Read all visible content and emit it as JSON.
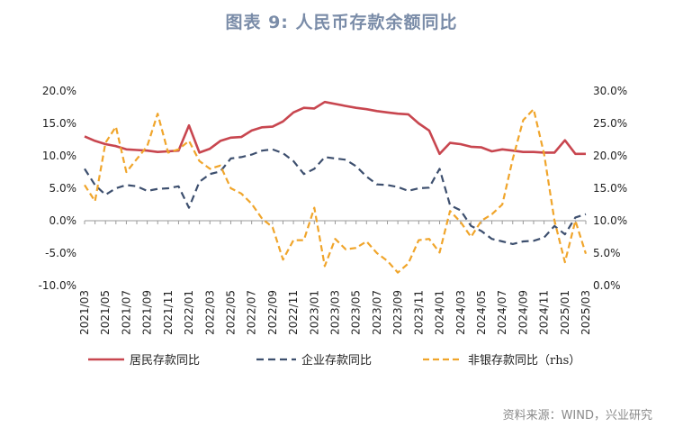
{
  "title": "图表 9: 人民币存款余额同比",
  "source": "资料来源：WIND，兴业研究",
  "chart_data": {
    "type": "line",
    "x_tick_labels": [
      "2021/03",
      "2021/05",
      "2021/07",
      "2021/09",
      "2021/11",
      "2022/01",
      "2022/03",
      "2022/05",
      "2022/07",
      "2022/09",
      "2022/11",
      "2023/01",
      "2023/03",
      "2023/05",
      "2023/07",
      "2023/09",
      "2023/11",
      "2024/01",
      "2024/03",
      "2024/05",
      "2024/07",
      "2024/09",
      "2024/11",
      "2025/01",
      "2025/03"
    ],
    "x": [
      "2021/03",
      "2021/04",
      "2021/05",
      "2021/06",
      "2021/07",
      "2021/08",
      "2021/09",
      "2021/10",
      "2021/11",
      "2021/12",
      "2022/01",
      "2022/02",
      "2022/03",
      "2022/04",
      "2022/05",
      "2022/06",
      "2022/07",
      "2022/08",
      "2022/09",
      "2022/10",
      "2022/11",
      "2022/12",
      "2023/01",
      "2023/02",
      "2023/03",
      "2023/04",
      "2023/05",
      "2023/06",
      "2023/07",
      "2023/08",
      "2023/09",
      "2023/10",
      "2023/11",
      "2023/12",
      "2024/01",
      "2024/02",
      "2024/03",
      "2024/04",
      "2024/05",
      "2024/06",
      "2024/07",
      "2024/08",
      "2024/09",
      "2024/10",
      "2024/11",
      "2024/12",
      "2025/01",
      "2025/02",
      "2025/03"
    ],
    "y_left": {
      "ticks": [
        "20.0%",
        "15.0%",
        "10.0%",
        "5.0%",
        "0.0%",
        "-5.0%",
        "-10.0%"
      ],
      "range": [
        -10,
        20
      ]
    },
    "y_right": {
      "ticks": [
        "30.0%",
        "25.0%",
        "20.0%",
        "15.0%",
        "10.0%",
        "5.0%",
        "0.0%"
      ],
      "range": [
        0,
        30
      ]
    },
    "series": [
      {
        "name": "居民存款同比",
        "axis": "left",
        "color": "#c8464f",
        "style": "solid",
        "values": [
          13.0,
          12.3,
          11.8,
          11.5,
          11.0,
          10.9,
          10.8,
          10.6,
          10.7,
          10.8,
          14.7,
          10.5,
          11.1,
          12.3,
          12.8,
          12.9,
          13.9,
          14.4,
          14.5,
          15.3,
          16.7,
          17.4,
          17.3,
          18.3,
          18.0,
          17.7,
          17.4,
          17.2,
          16.9,
          16.7,
          16.5,
          16.4,
          15.0,
          13.9,
          10.3,
          12.0,
          11.8,
          11.4,
          11.3,
          10.7,
          11.0,
          10.8,
          10.6,
          10.6,
          10.5,
          10.5,
          12.4,
          10.3,
          10.3
        ]
      },
      {
        "name": "企业存款同比",
        "axis": "left",
        "color": "#3d4f6e",
        "style": "dash",
        "values": [
          8.0,
          5.5,
          4.0,
          5.0,
          5.5,
          5.3,
          4.6,
          4.9,
          5.0,
          5.3,
          2.0,
          6.0,
          7.2,
          7.6,
          9.6,
          9.8,
          10.2,
          10.8,
          11.0,
          10.4,
          9.2,
          7.2,
          8.0,
          9.8,
          9.6,
          9.4,
          8.4,
          6.8,
          5.6,
          5.5,
          5.2,
          4.6,
          5.0,
          5.1,
          8.0,
          2.4,
          1.6,
          -0.8,
          -1.6,
          -2.8,
          -3.2,
          -3.6,
          -3.2,
          -3.1,
          -2.6,
          -0.8,
          -2.1,
          0.5,
          1.0
        ]
      },
      {
        "name": "非银存款同比（rhs）",
        "axis": "right",
        "color": "#f0a52b",
        "style": "dash",
        "values": [
          15.5,
          13.0,
          22.0,
          24.5,
          17.5,
          19.5,
          21.5,
          26.5,
          20.5,
          21.0,
          22.3,
          19.2,
          18.0,
          18.5,
          15.0,
          14.2,
          12.6,
          10.3,
          9.0,
          4.0,
          7.0,
          7.0,
          12.0,
          3.0,
          7.2,
          5.6,
          5.8,
          6.8,
          5.0,
          3.8,
          2.0,
          3.4,
          7.0,
          7.2,
          5.1,
          11.5,
          9.8,
          7.5,
          10.0,
          11.0,
          12.5,
          19.5,
          25.5,
          27.2,
          20.3,
          10.0,
          3.6,
          10.0,
          4.9
        ]
      }
    ],
    "legend_position": "bottom",
    "grid": false
  }
}
